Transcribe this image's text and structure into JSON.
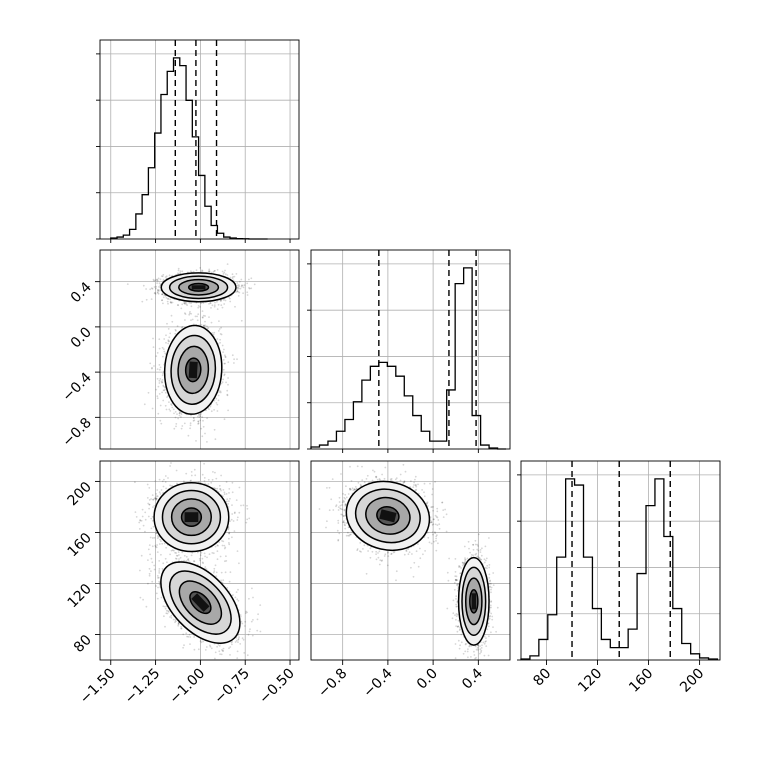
{
  "chart_data": {
    "type": "corner",
    "parameters": [
      {
        "range": [
          -1.56,
          -0.45
        ],
        "ticks": [
          -1.5,
          -1.25,
          -1.0,
          -0.75,
          -0.5
        ],
        "tick_labels": [
          "−1.50",
          "−1.25",
          "−1.00",
          "−0.75",
          "−0.50"
        ],
        "quantiles": [
          -1.14,
          -1.025,
          -0.91
        ]
      },
      {
        "range": [
          -1.08,
          0.68
        ],
        "ticks": [
          -0.8,
          -0.4,
          0.0,
          0.4
        ],
        "tick_labels": [
          "−0.8",
          "−0.4",
          "0.0",
          "0.4"
        ],
        "quantiles": [
          -0.48,
          0.14,
          0.38
        ]
      },
      {
        "range": [
          60,
          216
        ],
        "ticks": [
          80,
          120,
          160,
          200
        ],
        "tick_labels": [
          "80",
          "120",
          "160",
          "200"
        ],
        "quantiles": [
          100,
          137,
          177
        ]
      }
    ],
    "histograms": [
      {
        "param": 0,
        "bin_edges": [
          -1.5,
          -1.465,
          -1.43,
          -1.395,
          -1.36,
          -1.325,
          -1.29,
          -1.255,
          -1.22,
          -1.185,
          -1.15,
          -1.115,
          -1.08,
          -1.045,
          -1.01,
          -0.975,
          -0.94,
          -0.905,
          -0.87,
          -0.835,
          -0.8,
          -0.765,
          -0.73,
          -0.695,
          -0.66,
          -0.625
        ],
        "counts": [
          0.005,
          0.01,
          0.02,
          0.05,
          0.13,
          0.23,
          0.37,
          0.55,
          0.75,
          0.87,
          0.94,
          0.9,
          0.72,
          0.53,
          0.33,
          0.17,
          0.07,
          0.03,
          0.01,
          0.005,
          0.002,
          0.001,
          0,
          0,
          0
        ]
      },
      {
        "param": 1,
        "bin_edges": [
          -1.08,
          -1.005,
          -0.93,
          -0.855,
          -0.78,
          -0.705,
          -0.63,
          -0.555,
          -0.48,
          -0.405,
          -0.33,
          -0.255,
          -0.18,
          -0.105,
          -0.03,
          0.045,
          0.12,
          0.195,
          0.27,
          0.345,
          0.42,
          0.495,
          0.57,
          0.645
        ],
        "counts": [
          0.01,
          0.02,
          0.04,
          0.09,
          0.15,
          0.24,
          0.35,
          0.42,
          0.44,
          0.42,
          0.37,
          0.27,
          0.17,
          0.09,
          0.04,
          0.04,
          0.3,
          0.84,
          0.92,
          0.17,
          0.02,
          0.005,
          0
        ]
      },
      {
        "param": 2,
        "bin_edges": [
          60,
          67,
          74,
          81,
          88,
          95,
          102,
          109,
          116,
          123,
          130,
          137,
          144,
          151,
          158,
          165,
          172,
          179,
          186,
          193,
          200,
          207,
          214
        ],
        "counts": [
          0.005,
          0.02,
          0.1,
          0.22,
          0.5,
          0.88,
          0.85,
          0.5,
          0.25,
          0.1,
          0.06,
          0.06,
          0.15,
          0.42,
          0.75,
          0.88,
          0.6,
          0.25,
          0.08,
          0.03,
          0.01,
          0.005
        ]
      }
    ],
    "joint": [
      {
        "x_param": 0,
        "y_param": 1,
        "clusters": [
          {
            "cx": -1.01,
            "cy": 0.35,
            "sx": 0.085,
            "sy": 0.052,
            "rho": 0.0,
            "n": 2200
          },
          {
            "cx": -1.04,
            "cy": -0.38,
            "sx": 0.065,
            "sy": 0.16,
            "rho": 0.05,
            "n": 2200
          }
        ]
      },
      {
        "x_param": 0,
        "y_param": 2,
        "clusters": [
          {
            "cx": -1.05,
            "cy": 172,
            "sx": 0.085,
            "sy": 11,
            "rho": 0.0,
            "n": 2200
          },
          {
            "cx": -1.0,
            "cy": 105,
            "sx": 0.09,
            "sy": 13,
            "rho": -0.5,
            "n": 2200
          }
        ]
      },
      {
        "x_param": 1,
        "y_param": 2,
        "clusters": [
          {
            "cx": -0.4,
            "cy": 173,
            "sx": 0.15,
            "sy": 11,
            "rho": -0.1,
            "n": 2200
          },
          {
            "cx": 0.36,
            "cy": 106,
            "sx": 0.055,
            "sy": 14,
            "rho": 0.0,
            "n": 2200
          }
        ]
      }
    ],
    "grid": true,
    "hist_bins": 20
  }
}
